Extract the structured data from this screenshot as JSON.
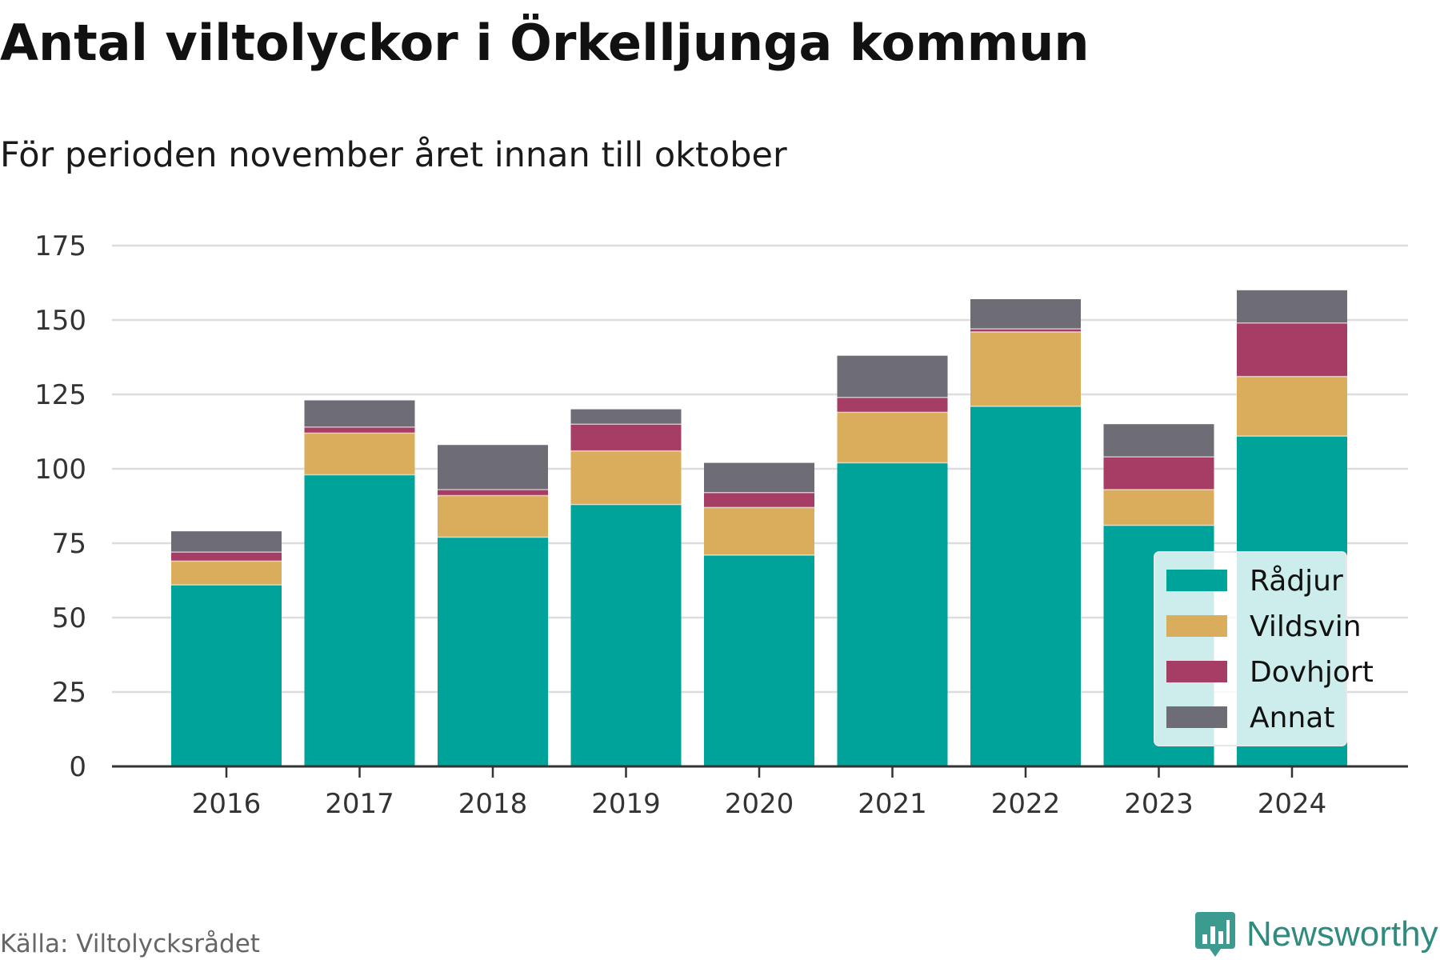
{
  "title": "Antal viltolyckor i Örkelljunga kommun",
  "subtitle": "För perioden november året innan till oktober",
  "source": "Källa: Viltolycksrådet",
  "brand": {
    "name": "Newsworthy",
    "icon": "bar-chart-logo-icon",
    "color": "#2e8b7e"
  },
  "chart_data": {
    "type": "bar",
    "stacked": true,
    "categories": [
      "2016",
      "2017",
      "2018",
      "2019",
      "2020",
      "2021",
      "2022",
      "2023",
      "2024"
    ],
    "series": [
      {
        "name": "Rådjur",
        "color": "#00a39a",
        "values": [
          61,
          98,
          77,
          88,
          71,
          102,
          121,
          81,
          111
        ]
      },
      {
        "name": "Vildsvin",
        "color": "#d9ad5b",
        "values": [
          8,
          14,
          14,
          18,
          16,
          17,
          25,
          12,
          20
        ]
      },
      {
        "name": "Dovhjort",
        "color": "#a63d64",
        "values": [
          3,
          2,
          2,
          9,
          5,
          5,
          1,
          11,
          18
        ]
      },
      {
        "name": "Annat",
        "color": "#6e6c75",
        "values": [
          7,
          9,
          15,
          5,
          10,
          14,
          10,
          11,
          11
        ]
      }
    ],
    "yticks": [
      "0",
      "25",
      "50",
      "75",
      "100",
      "125",
      "150",
      "175"
    ],
    "ylim": [
      0,
      175
    ],
    "grid": true,
    "legend": "bottom-right"
  }
}
